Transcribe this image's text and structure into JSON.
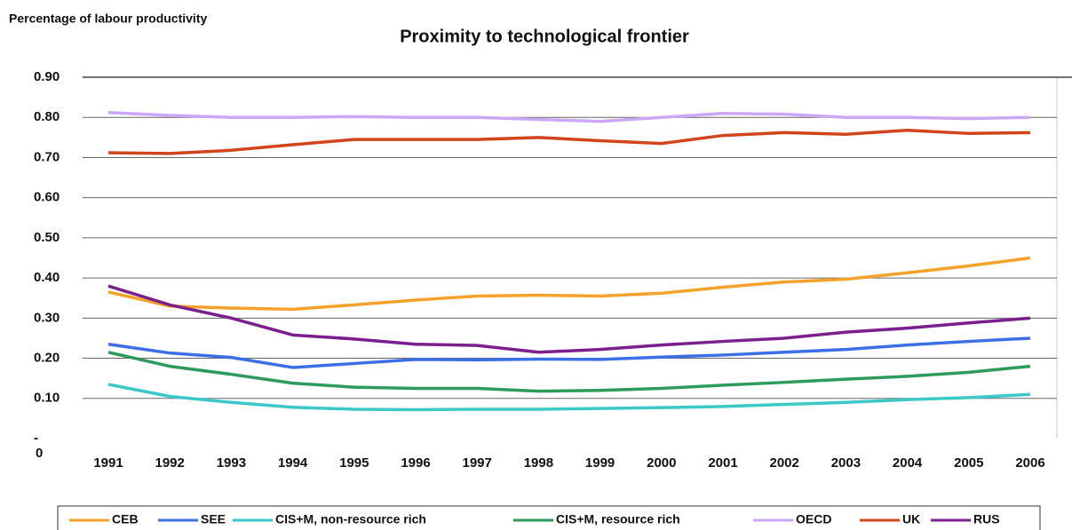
{
  "chart_data": {
    "type": "line",
    "title": "Proximity to technological frontier",
    "y_axis_label": "Percentage of labour productivity",
    "axis_note": "0",
    "categories": [
      "1991",
      "1992",
      "1993",
      "1994",
      "1995",
      "1996",
      "1997",
      "1998",
      "1999",
      "2000",
      "2001",
      "2002",
      "2003",
      "2004",
      "2005",
      "2006"
    ],
    "series": [
      {
        "name": "CEB",
        "color": "#f5a22a",
        "values": [
          0.365,
          0.33,
          0.325,
          0.322,
          0.333,
          0.345,
          0.355,
          0.357,
          0.355,
          0.362,
          0.377,
          0.39,
          0.397,
          0.413,
          0.43,
          0.45
        ]
      },
      {
        "name": "SEE",
        "color": "#3b6fe6",
        "values": [
          0.235,
          0.213,
          0.202,
          0.177,
          0.187,
          0.197,
          0.196,
          0.198,
          0.197,
          0.203,
          0.208,
          0.215,
          0.222,
          0.233,
          0.242,
          0.25
        ]
      },
      {
        "name": "CIS+M, non-resource rich",
        "color": "#3cc8c8",
        "values": [
          0.135,
          0.105,
          0.09,
          0.078,
          0.073,
          0.072,
          0.073,
          0.073,
          0.075,
          0.077,
          0.08,
          0.085,
          0.09,
          0.097,
          0.102,
          0.11
        ]
      },
      {
        "name": "CIS+M, resource rich",
        "color": "#2e9a5e",
        "values": [
          0.215,
          0.18,
          0.16,
          0.138,
          0.128,
          0.125,
          0.125,
          0.118,
          0.12,
          0.125,
          0.133,
          0.14,
          0.148,
          0.155,
          0.165,
          0.18
        ]
      },
      {
        "name": "OECD",
        "color": "#cba8f5",
        "values": [
          0.812,
          0.805,
          0.8,
          0.8,
          0.802,
          0.8,
          0.8,
          0.795,
          0.79,
          0.8,
          0.81,
          0.808,
          0.8,
          0.8,
          0.797,
          0.8
        ]
      },
      {
        "name": "UK",
        "color": "#d2441c",
        "values": [
          0.712,
          0.71,
          0.718,
          0.732,
          0.745,
          0.745,
          0.745,
          0.75,
          0.742,
          0.735,
          0.755,
          0.762,
          0.758,
          0.768,
          0.76,
          0.762
        ]
      },
      {
        "name": "RUS",
        "color": "#7b1f8c",
        "values": [
          0.38,
          0.333,
          0.3,
          0.258,
          0.248,
          0.235,
          0.232,
          0.215,
          0.222,
          0.233,
          0.242,
          0.25,
          0.265,
          0.275,
          0.288,
          0.3
        ]
      }
    ],
    "ylim": [
      0,
      0.9
    ],
    "yticks": [
      {
        "value": 0,
        "label": "-"
      },
      {
        "value": 0.1,
        "label": "0.10"
      },
      {
        "value": 0.2,
        "label": "0.20"
      },
      {
        "value": 0.3,
        "label": "0.30"
      },
      {
        "value": 0.4,
        "label": "0.40"
      },
      {
        "value": 0.5,
        "label": "0.50"
      },
      {
        "value": 0.6,
        "label": "0.60"
      },
      {
        "value": 0.7,
        "label": "0.70"
      },
      {
        "value": 0.8,
        "label": "0.80"
      },
      {
        "value": 0.9,
        "label": "0.90"
      }
    ],
    "grid": true
  }
}
